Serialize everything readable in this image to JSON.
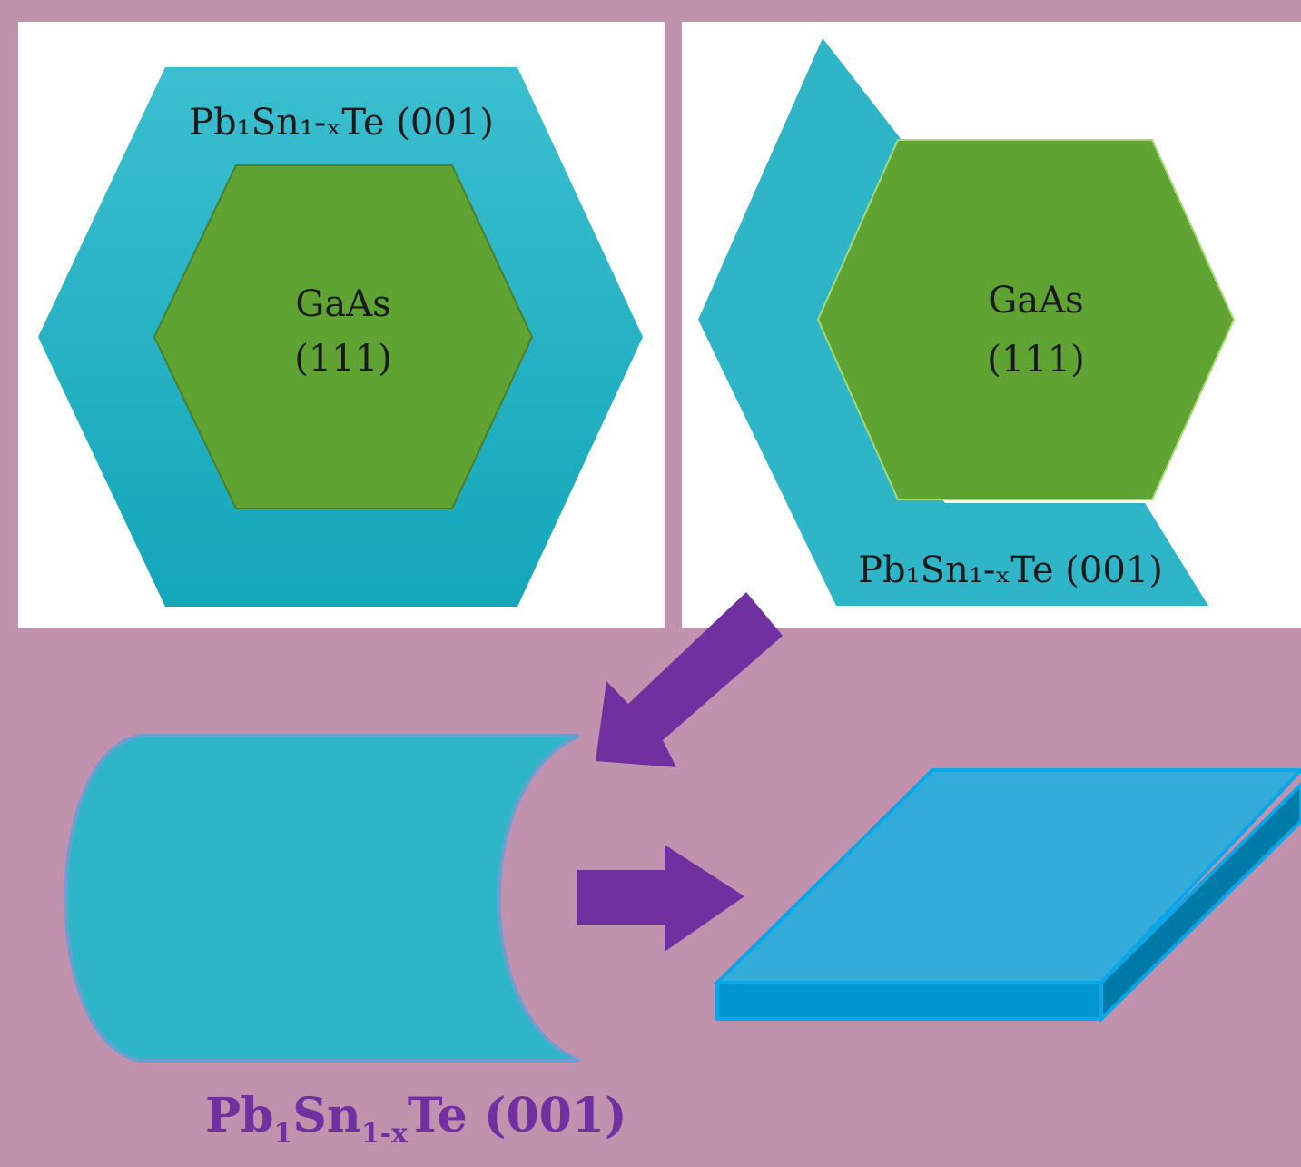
{
  "left_panel": {
    "outer_label": "Pb₁Sn₁-ₓTe (001)",
    "inner_label_line1": "GaAs",
    "inner_label_line2": "(111)"
  },
  "right_panel": {
    "outer_label": "Pb₁Sn₁-ₓTe (001)",
    "inner_label_line1": "GaAs",
    "inner_label_line2": "(111)"
  },
  "caption": {
    "base1": "Pb",
    "sub1": "1",
    "base2": "Sn",
    "sub2": "1-x",
    "base3": "Te (001)"
  },
  "colors": {
    "background": "#c092ae",
    "teal": "#2fb5c8",
    "green": "#5fa332",
    "arrow_purple": "#7030a0",
    "plate_top": "#33acd9",
    "plate_side": "#0096d1",
    "plate_edge": "#007aa6"
  }
}
